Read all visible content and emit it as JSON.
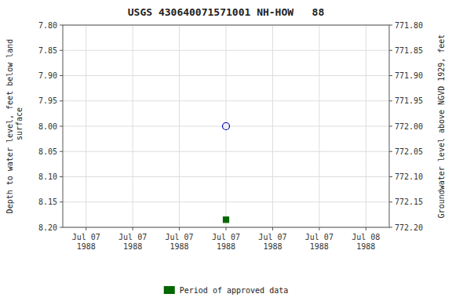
{
  "chart_data": {
    "type": "scatter",
    "title": "USGS 430640071571001 NH-HOW   88",
    "y_label": "Depth to water level, feet below land\n surface",
    "y2_label": "Groundwater level above NGVD 1929, feet",
    "categories": [
      "Jul 07\n1988",
      "Jul 07\n1988",
      "Jul 07\n1988",
      "Jul 07\n1988",
      "Jul 07\n1988",
      "Jul 07\n1988",
      "Jul 08\n1988"
    ],
    "series": [
      {
        "color": "#0000bb",
        "marker": "open-circle",
        "values": [
          null,
          null,
          null,
          8.0,
          null,
          null,
          null
        ]
      },
      {
        "name": "Period of approved data",
        "color": "#006600",
        "marker": "square",
        "values": [
          null,
          null,
          null,
          8.185,
          null,
          null,
          null
        ]
      }
    ],
    "ylim": [
      8.2,
      7.8
    ],
    "yticks": [
      {
        "value": 7.8,
        "label": "7.80"
      },
      {
        "value": 7.85,
        "label": "7.85"
      },
      {
        "value": 7.9,
        "label": "7.90"
      },
      {
        "value": 7.95,
        "label": "7.95"
      },
      {
        "value": 8.0,
        "label": "8.00"
      },
      {
        "value": 8.05,
        "label": "8.05"
      },
      {
        "value": 8.1,
        "label": "8.10"
      },
      {
        "value": 8.15,
        "label": "8.15"
      },
      {
        "value": 8.2,
        "label": "8.20"
      }
    ],
    "y2lim": [
      772.2,
      771.8
    ],
    "y2ticks": [
      {
        "value": 772.2,
        "label": "772.20"
      },
      {
        "value": 772.15,
        "label": "772.15"
      },
      {
        "value": 772.1,
        "label": "772.10"
      },
      {
        "value": 772.05,
        "label": "772.05"
      },
      {
        "value": 772.0,
        "label": "772.00"
      },
      {
        "value": 771.95,
        "label": "771.95"
      },
      {
        "value": 771.9,
        "label": "771.90"
      },
      {
        "value": 771.85,
        "label": "771.85"
      },
      {
        "value": 771.8,
        "label": "771.80"
      }
    ],
    "grid": true,
    "legend": "bottom"
  }
}
